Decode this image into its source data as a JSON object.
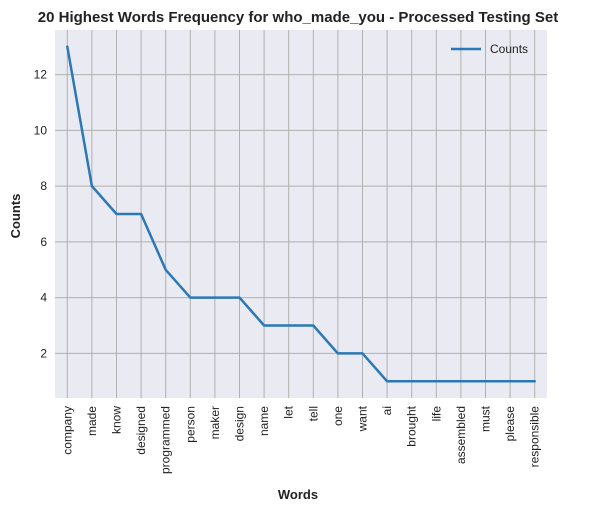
{
  "chart_data": {
    "type": "line",
    "title": "20 Highest Words Frequency for who_made_you - Processed Testing Set",
    "xlabel": "Words",
    "ylabel": "Counts",
    "categories": [
      "company",
      "made",
      "know",
      "designed",
      "programmed",
      "person",
      "maker",
      "design",
      "name",
      "let",
      "tell",
      "one",
      "want",
      "ai",
      "brought",
      "life",
      "assembled",
      "must",
      "please",
      "responsible"
    ],
    "series": [
      {
        "name": "Counts",
        "values": [
          13,
          8,
          7,
          7,
          5,
          4,
          4,
          4,
          3,
          3,
          3,
          2,
          2,
          1,
          1,
          1,
          1,
          1,
          1,
          1
        ],
        "color": "#2a78b6"
      }
    ],
    "y_ticks": [
      2,
      4,
      6,
      8,
      10,
      12
    ],
    "ylim": [
      0.4,
      13.6
    ],
    "grid": true,
    "legend_position": "top-right",
    "background_color": "#eaeaf2",
    "grid_color": "#b0b0b0"
  }
}
